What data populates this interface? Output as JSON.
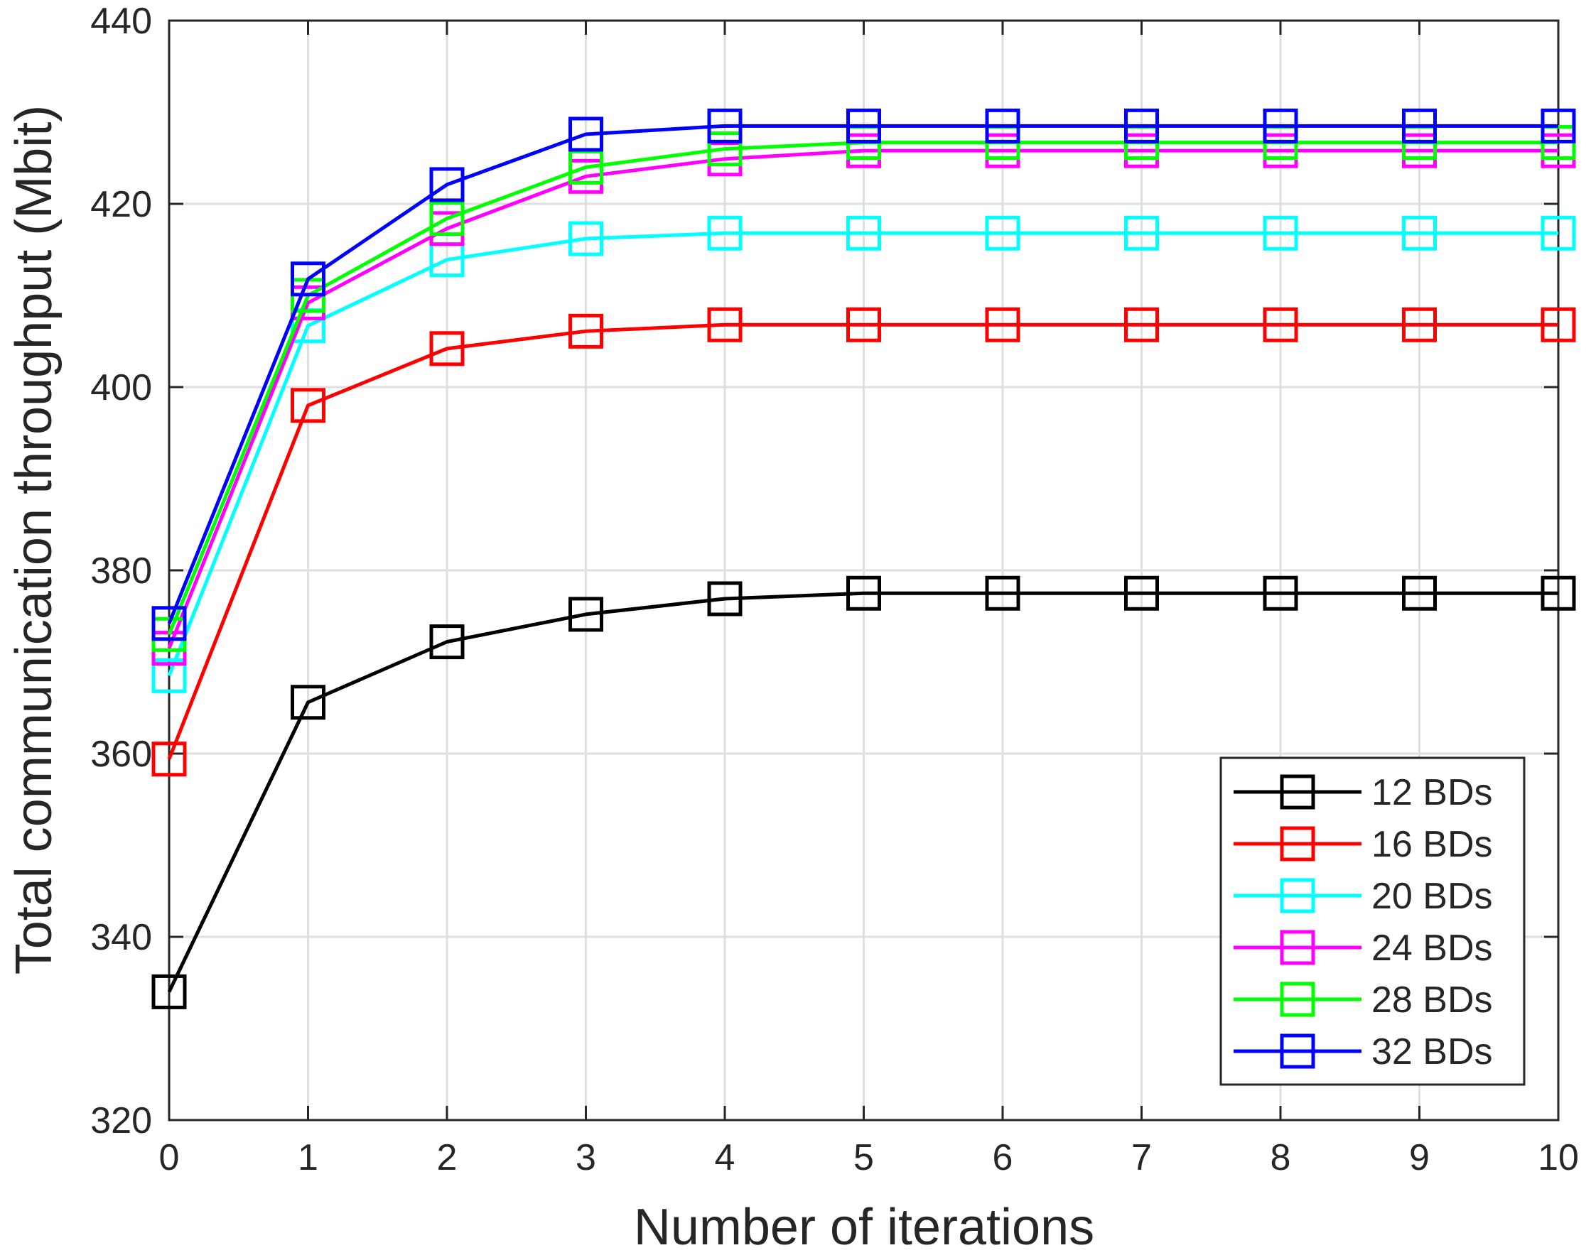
{
  "chart_data": {
    "type": "line",
    "title": "",
    "xlabel": "Number of iterations",
    "ylabel": "Total communication throughput (Mbit)",
    "xlim": [
      0,
      10
    ],
    "ylim": [
      320,
      440
    ],
    "xticks": [
      0,
      1,
      2,
      3,
      4,
      5,
      6,
      7,
      8,
      9,
      10
    ],
    "yticks": [
      320,
      340,
      360,
      380,
      400,
      420,
      440
    ],
    "grid": true,
    "legend_position": "bottom-right",
    "marker": "square",
    "x": [
      0,
      1,
      2,
      3,
      4,
      5,
      6,
      7,
      8,
      9,
      10
    ],
    "series": [
      {
        "name": "12 BDs",
        "color": "#000000",
        "values": [
          334.0,
          365.6,
          372.2,
          375.2,
          376.9,
          377.5,
          377.5,
          377.5,
          377.5,
          377.5,
          377.5
        ]
      },
      {
        "name": "16 BDs",
        "color": "#ff0000",
        "values": [
          359.4,
          398.0,
          404.2,
          406.1,
          406.8,
          406.8,
          406.8,
          406.8,
          406.8,
          406.8,
          406.8
        ]
      },
      {
        "name": "20 BDs",
        "color": "#00ffff",
        "values": [
          368.5,
          406.7,
          413.9,
          416.2,
          416.8,
          416.8,
          416.8,
          416.8,
          416.8,
          416.8,
          416.8
        ]
      },
      {
        "name": "24 BDs",
        "color": "#ff00ff",
        "values": [
          371.5,
          409.2,
          417.3,
          423.0,
          424.9,
          425.8,
          425.8,
          425.8,
          425.8,
          425.8,
          425.8
        ]
      },
      {
        "name": "28 BDs",
        "color": "#00ff00",
        "values": [
          373.0,
          410.0,
          418.4,
          424.0,
          426.0,
          426.7,
          426.7,
          426.7,
          426.7,
          426.7,
          426.7
        ]
      },
      {
        "name": "32 BDs",
        "color": "#0000ff",
        "values": [
          374.2,
          411.8,
          422.1,
          427.6,
          428.5,
          428.5,
          428.5,
          428.5,
          428.5,
          428.5,
          428.5
        ]
      }
    ]
  }
}
